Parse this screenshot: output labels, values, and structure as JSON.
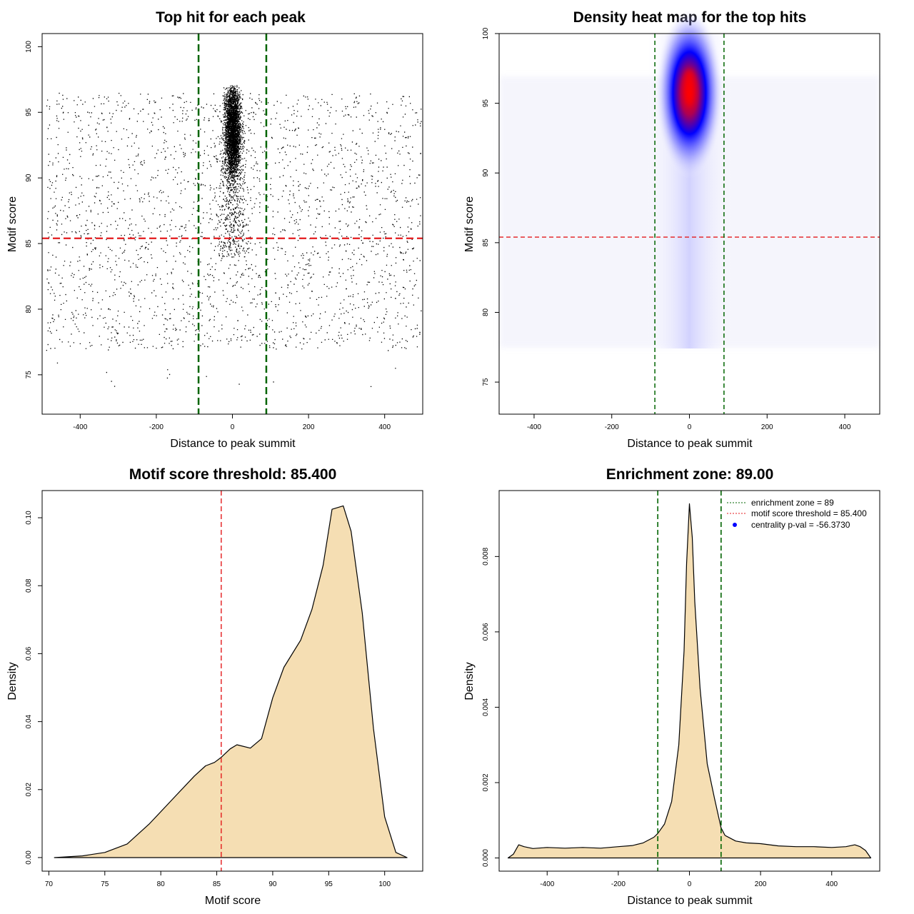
{
  "chart_data": [
    {
      "type": "scatter",
      "title": "Top hit for each peak",
      "xlabel": "Distance to peak summit",
      "ylabel": "Motif score",
      "xlim": [
        -500,
        500
      ],
      "ylim": [
        72,
        101
      ],
      "xticks": [
        "-400",
        "-200",
        "0",
        "200",
        "400"
      ],
      "yticks": [
        "75",
        "80",
        "85",
        "90",
        "95",
        "100"
      ],
      "threshold_y": 85.4,
      "zone_x": [
        -89,
        89
      ],
      "point_distribution": {
        "central_count": 3000,
        "central_mean_score": 95,
        "background_count": 2400
      },
      "colors": {
        "points": "#000000",
        "threshold": "#e41a1c",
        "zone": "#006400"
      }
    },
    {
      "type": "heatmap",
      "title": "Density heat map for the top hits",
      "xlabel": "Distance to peak summit",
      "ylabel": "Motif score",
      "xlim": [
        -490,
        490
      ],
      "ylim": [
        72.7,
        100
      ],
      "xticks": [
        "-400",
        "-200",
        "0",
        "200",
        "400"
      ],
      "yticks": [
        "75",
        "80",
        "85",
        "90",
        "95",
        "100"
      ],
      "threshold_y": 85.4,
      "zone_x": [
        -89,
        89
      ],
      "density_peak": {
        "x": 0,
        "y": 96
      },
      "colors": {
        "low": "#ffffff",
        "mid": "#0000ff",
        "high": "#ff0000",
        "threshold": "#e41a1c",
        "zone": "#006400"
      }
    },
    {
      "type": "area",
      "title": "Motif score threshold: 85.400",
      "xlabel": "Motif score",
      "ylabel": "Density",
      "xlim": [
        69.4,
        103.4
      ],
      "ylim": [
        -0.004,
        0.108
      ],
      "xticks": [
        "70",
        "75",
        "80",
        "85",
        "90",
        "95",
        "100"
      ],
      "yticks": [
        "0.00",
        "0.02",
        "0.04",
        "0.06",
        "0.08",
        "0.10"
      ],
      "x": [
        70.5,
        73,
        75,
        77,
        79,
        81,
        83,
        84,
        84.8,
        85.4,
        86.2,
        86.8,
        88,
        89,
        90,
        91,
        92.5,
        93.5,
        94.5,
        95.3,
        96.3,
        97,
        98,
        99,
        100,
        101,
        102
      ],
      "values": [
        0,
        0.0005,
        0.0015,
        0.004,
        0.01,
        0.017,
        0.024,
        0.027,
        0.028,
        0.0295,
        0.032,
        0.0332,
        0.0322,
        0.035,
        0.047,
        0.056,
        0.064,
        0.073,
        0.086,
        0.1025,
        0.1035,
        0.096,
        0.072,
        0.038,
        0.012,
        0.0015,
        0
      ],
      "threshold_x": 85.4,
      "colors": {
        "fill": "#f5deb3",
        "line": "#000000",
        "threshold": "#e41a1c"
      }
    },
    {
      "type": "area",
      "title": "Enrichment zone: 89.00",
      "xlabel": "Distance to peak summit",
      "ylabel": "Density",
      "xlim": [
        -535,
        535
      ],
      "ylim": [
        -0.00035,
        0.00975
      ],
      "xticks": [
        "-400",
        "-200",
        "0",
        "200",
        "400"
      ],
      "yticks": [
        "0.000",
        "0.002",
        "0.004",
        "0.006",
        "0.008"
      ],
      "x": [
        -510,
        -495,
        -480,
        -465,
        -440,
        -400,
        -350,
        -300,
        -250,
        -200,
        -160,
        -130,
        -100,
        -89,
        -70,
        -50,
        -30,
        -15,
        -8,
        0,
        8,
        15,
        30,
        50,
        70,
        89,
        100,
        130,
        160,
        200,
        250,
        300,
        350,
        400,
        440,
        465,
        480,
        495,
        510
      ],
      "values": [
        0,
        0.0001,
        0.00035,
        0.0003,
        0.00025,
        0.00028,
        0.00026,
        0.00028,
        0.00026,
        0.0003,
        0.00033,
        0.0004,
        0.00055,
        0.00065,
        0.0009,
        0.0015,
        0.003,
        0.0055,
        0.0078,
        0.0094,
        0.0085,
        0.0068,
        0.0045,
        0.0025,
        0.0016,
        0.0008,
        0.0006,
        0.00045,
        0.0004,
        0.00038,
        0.00032,
        0.0003,
        0.0003,
        0.00028,
        0.0003,
        0.00035,
        0.0003,
        0.0002,
        0
      ],
      "zone_x": [
        -89,
        89
      ],
      "legend": {
        "entries": [
          "enrichment zone = 89",
          "motif score threshold = 85.400",
          "centrality p-val = -56.3730"
        ],
        "position": "top-right"
      },
      "colors": {
        "fill": "#f5deb3",
        "line": "#000000",
        "zone": "#006400",
        "threshold": "#e41a1c",
        "dot": "#0000ff"
      }
    }
  ]
}
